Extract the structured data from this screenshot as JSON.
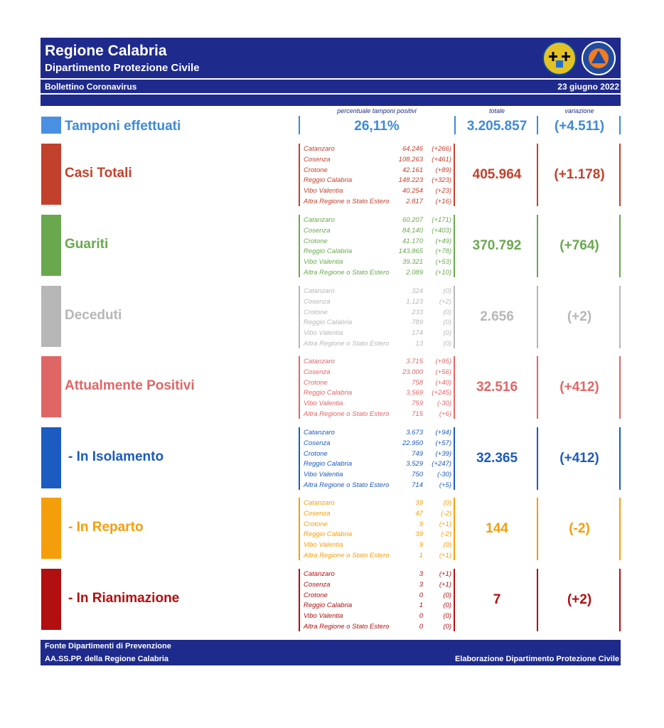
{
  "header": {
    "title": "Regione Calabria",
    "subtitle": "Dipartimento Protezione Civile",
    "bulletin": "Bollettino Coronavirus",
    "date": "23 giugno 2022"
  },
  "columns": {
    "pct": "percentuale tamponi positivi",
    "total": "totale",
    "variation": "variazione"
  },
  "tamponi": {
    "label": "Tamponi effettuati",
    "pct": "26,11%",
    "total": "3.205.857",
    "variation": "(+4.511)",
    "color": "#3d8ad6"
  },
  "sections": [
    {
      "key": "casi",
      "label": "Casi Totali",
      "color": "#c2412d",
      "total": "405.964",
      "variation": "(+1.178)",
      "rows": [
        {
          "name": "Catanzaro",
          "value": "64.246",
          "var": "(+266)"
        },
        {
          "name": "Cosenza",
          "value": "108.263",
          "var": "(+461)"
        },
        {
          "name": "Crotone",
          "value": "42.161",
          "var": "(+89)"
        },
        {
          "name": "Reggio Calabria",
          "value": "148.223",
          "var": "(+323)"
        },
        {
          "name": "Vibo Valentia",
          "value": "40.254",
          "var": "(+23)"
        },
        {
          "name": "Altra Regione o Stato Estero",
          "value": "2.817",
          "var": "(+16)"
        }
      ]
    },
    {
      "key": "guariti",
      "label": "Guariti",
      "color": "#6aa84f",
      "total": "370.792",
      "variation": "(+764)",
      "rows": [
        {
          "name": "Catanzaro",
          "value": "60.207",
          "var": "(+171)"
        },
        {
          "name": "Cosenza",
          "value": "84.140",
          "var": "(+403)"
        },
        {
          "name": "Crotone",
          "value": "41.170",
          "var": "(+49)"
        },
        {
          "name": "Reggio Calabria",
          "value": "143.865",
          "var": "(+78)"
        },
        {
          "name": "Vibo Valentia",
          "value": "39.321",
          "var": "(+53)"
        },
        {
          "name": "Altra Regione o Stato Estero",
          "value": "2.089",
          "var": "(+10)"
        }
      ]
    },
    {
      "key": "deceduti",
      "label": "Deceduti",
      "color": "#b7b7b7",
      "total": "2.656",
      "variation": "(+2)",
      "rows": [
        {
          "name": "Catanzaro",
          "value": "324",
          "var": "(0)"
        },
        {
          "name": "Cosenza",
          "value": "1.123",
          "var": "(+2)"
        },
        {
          "name": "Crotone",
          "value": "233",
          "var": "(0)"
        },
        {
          "name": "Reggio Calabria",
          "value": "789",
          "var": "(0)"
        },
        {
          "name": "Vibo Valentia",
          "value": "174",
          "var": "(0)"
        },
        {
          "name": "Altra Regione o Stato Estero",
          "value": "13",
          "var": "(0)"
        }
      ]
    },
    {
      "key": "attualmente",
      "label": "Attualmente Positivi",
      "color": "#e06666",
      "total": "32.516",
      "variation": "(+412)",
      "rows": [
        {
          "name": "Catanzaro",
          "value": "3.715",
          "var": "(+95)"
        },
        {
          "name": "Cosenza",
          "value": "23.000",
          "var": "(+56)"
        },
        {
          "name": "Crotone",
          "value": "758",
          "var": "(+40)"
        },
        {
          "name": "Reggio Calabria",
          "value": "3.569",
          "var": "(+245)"
        },
        {
          "name": "Vibo Valentia",
          "value": "759",
          "var": "(-30)"
        },
        {
          "name": "Altra Regione o Stato Estero",
          "value": "715",
          "var": "(+6)"
        }
      ]
    },
    {
      "key": "isolamento",
      "label": "- In Isolamento",
      "color": "#1c5bbf",
      "total": "32.365",
      "variation": "(+412)",
      "rows": [
        {
          "name": "Catanzaro",
          "value": "3.673",
          "var": "(+94)"
        },
        {
          "name": "Cosenza",
          "value": "22.950",
          "var": "(+57)"
        },
        {
          "name": "Crotone",
          "value": "749",
          "var": "(+39)"
        },
        {
          "name": "Reggio Calabria",
          "value": "3.529",
          "var": "(+247)"
        },
        {
          "name": "Vibo Valentia",
          "value": "750",
          "var": "(-30)"
        },
        {
          "name": "Altra Regione o Stato Estero",
          "value": "714",
          "var": "(+5)"
        }
      ]
    },
    {
      "key": "reparto",
      "label": "- In Reparto",
      "color": "#f59e0b",
      "total": "144",
      "variation": "(-2)",
      "rows": [
        {
          "name": "Catanzaro",
          "value": "39",
          "var": "(0)"
        },
        {
          "name": "Cosenza",
          "value": "47",
          "var": "(-2)"
        },
        {
          "name": "Crotone",
          "value": "9",
          "var": "(+1)"
        },
        {
          "name": "Reggio Calabria",
          "value": "39",
          "var": "(-2)"
        },
        {
          "name": "Vibo Valentia",
          "value": "9",
          "var": "(0)"
        },
        {
          "name": "Altra Regione o Stato Estero",
          "value": "1",
          "var": "(+1)"
        }
      ]
    },
    {
      "key": "rianimazione",
      "label": "- In Rianimazione",
      "color": "#b10f10",
      "total": "7",
      "variation": "(+2)",
      "rows": [
        {
          "name": "Catanzaro",
          "value": "3",
          "var": "(+1)"
        },
        {
          "name": "Cosenza",
          "value": "3",
          "var": "(+1)"
        },
        {
          "name": "Crotone",
          "value": "0",
          "var": "(0)"
        },
        {
          "name": "Reggio Calabria",
          "value": "1",
          "var": "(0)"
        },
        {
          "name": "Vibo Valentia",
          "value": "0",
          "var": "(0)"
        },
        {
          "name": "Altra Regione o Stato Estero",
          "value": "0",
          "var": "(0)"
        }
      ]
    }
  ],
  "footer": {
    "source_line1": "Fonte Dipartimenti di Prevenzione",
    "source_line2": "AA.SS.PP.  della Regione Calabria",
    "elaboration": "Elaborazione Dipartimento Protezione Civile"
  }
}
